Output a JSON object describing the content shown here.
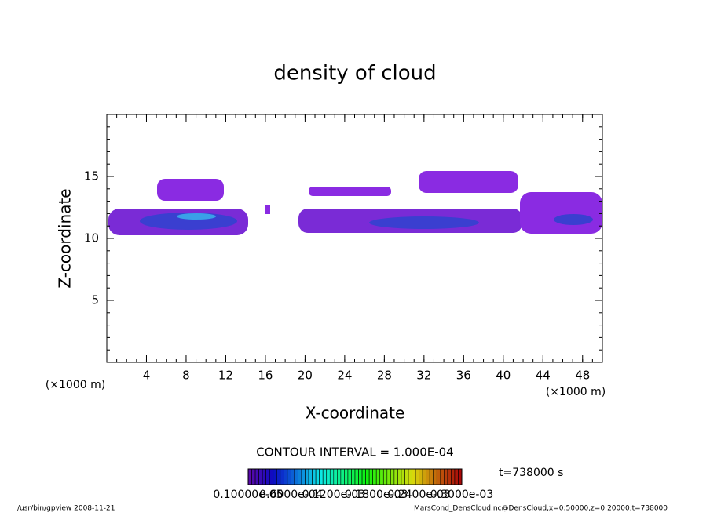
{
  "chart_data": {
    "type": "contour",
    "title": "density of cloud",
    "x_label": "X-coordinate",
    "y_label": "Z-coordinate",
    "x_unit": "(×1000 m)",
    "y_unit": "(×1000 m)",
    "xlim": [
      0,
      50
    ],
    "ylim": [
      0,
      20
    ],
    "xticks": [
      4,
      8,
      12,
      16,
      20,
      24,
      28,
      32,
      36,
      40,
      44,
      48
    ],
    "yticks": [
      5,
      10,
      15
    ],
    "contour_interval": "CONTOUR INTERVAL = 1.000E-04",
    "time_label": "t=738000 s",
    "colorbar_labels": [
      "0.10000e-05",
      "0.6000e-04",
      "0.1200e-03",
      "0.1800e-03",
      "0.2400e-03",
      "0.3000e-03"
    ],
    "footer_left": "/usr/bin/gpview   2008-11-21",
    "footer_right": "MarsCond_DensCloud.nc@DensCloud,x=0:50000,z=0:20000,t=738000"
  }
}
